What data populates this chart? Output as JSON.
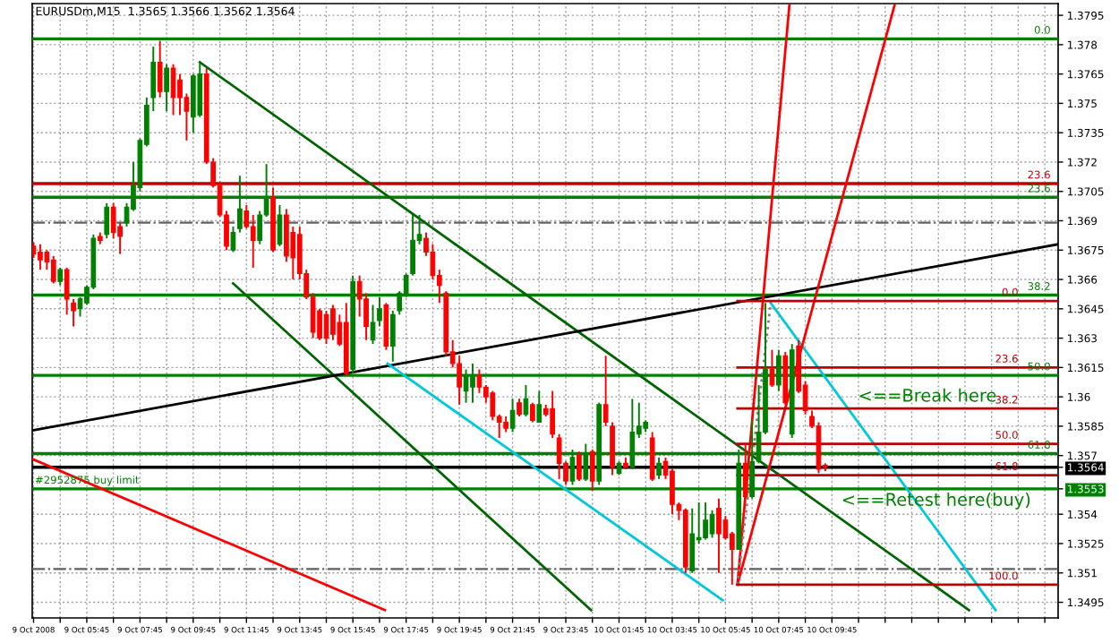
{
  "chart_data": {
    "type": "candlestick",
    "title": "EURUSDm,M15  1.3565 1.3566 1.3562 1.3564",
    "x": [
      "2008-10-09T03:45",
      "2008-10-09T04:00",
      "2008-10-09T04:15",
      "2008-10-09T04:30",
      "2008-10-09T04:45",
      "2008-10-09T05:00",
      "2008-10-09T05:15",
      "2008-10-09T05:30",
      "2008-10-09T05:45",
      "2008-10-09T06:00",
      "2008-10-09T06:15",
      "2008-10-09T06:30",
      "2008-10-09T06:45",
      "2008-10-09T07:00",
      "2008-10-09T07:15",
      "2008-10-09T07:30",
      "2008-10-09T07:45",
      "2008-10-09T08:00",
      "2008-10-09T08:15",
      "2008-10-09T08:30",
      "2008-10-09T08:45",
      "2008-10-09T09:00",
      "2008-10-09T09:15",
      "2008-10-09T09:30",
      "2008-10-09T09:45",
      "2008-10-09T10:00",
      "2008-10-09T10:15",
      "2008-10-09T10:30",
      "2008-10-09T10:45",
      "2008-10-09T11:00",
      "2008-10-09T11:15",
      "2008-10-09T11:30",
      "2008-10-09T11:45",
      "2008-10-09T12:00",
      "2008-10-09T12:15",
      "2008-10-09T12:30",
      "2008-10-09T12:45",
      "2008-10-09T13:00",
      "2008-10-09T13:15",
      "2008-10-09T13:30",
      "2008-10-09T13:45",
      "2008-10-09T14:00",
      "2008-10-09T14:15",
      "2008-10-09T14:30",
      "2008-10-09T14:45",
      "2008-10-09T15:00",
      "2008-10-09T15:15",
      "2008-10-09T15:30",
      "2008-10-09T15:45",
      "2008-10-09T16:00",
      "2008-10-09T16:15",
      "2008-10-09T16:30",
      "2008-10-09T16:45",
      "2008-10-09T17:00",
      "2008-10-09T17:15",
      "2008-10-09T17:30",
      "2008-10-09T17:45",
      "2008-10-09T18:00",
      "2008-10-09T18:15",
      "2008-10-09T18:30",
      "2008-10-09T18:45",
      "2008-10-09T19:00",
      "2008-10-09T19:15",
      "2008-10-09T19:30",
      "2008-10-09T19:45",
      "2008-10-09T20:00",
      "2008-10-09T20:15",
      "2008-10-09T20:30",
      "2008-10-09T20:45",
      "2008-10-09T21:00",
      "2008-10-09T21:15",
      "2008-10-09T21:30",
      "2008-10-09T21:45",
      "2008-10-09T22:00",
      "2008-10-09T22:15",
      "2008-10-09T22:30",
      "2008-10-09T22:45",
      "2008-10-09T23:00",
      "2008-10-09T23:15",
      "2008-10-09T23:30",
      "2008-10-09T23:45",
      "2008-10-10T00:00",
      "2008-10-10T00:15",
      "2008-10-10T00:30",
      "2008-10-10T00:45",
      "2008-10-10T01:00",
      "2008-10-10T01:15",
      "2008-10-10T01:30",
      "2008-10-10T01:45",
      "2008-10-10T02:00",
      "2008-10-10T02:15",
      "2008-10-10T02:30",
      "2008-10-10T02:45",
      "2008-10-10T03:00",
      "2008-10-10T03:15",
      "2008-10-10T03:30",
      "2008-10-10T03:45",
      "2008-10-10T04:00",
      "2008-10-10T04:15",
      "2008-10-10T04:30",
      "2008-10-10T04:45",
      "2008-10-10T05:00",
      "2008-10-10T05:15",
      "2008-10-10T05:30",
      "2008-10-10T05:45",
      "2008-10-10T06:00",
      "2008-10-10T06:15",
      "2008-10-10T06:30",
      "2008-10-10T06:45",
      "2008-10-10T07:00",
      "2008-10-10T07:15",
      "2008-10-10T07:30",
      "2008-10-10T07:45",
      "2008-10-10T08:00",
      "2008-10-10T08:15",
      "2008-10-10T08:30",
      "2008-10-10T08:45",
      "2008-10-10T09:00",
      "2008-10-10T09:15",
      "2008-10-10T09:30"
    ],
    "ohlc": [
      [
        1.3677,
        1.3679,
        1.3671,
        1.3673
      ],
      [
        1.3674,
        1.3678,
        1.3665,
        1.367
      ],
      [
        1.3674,
        1.3675,
        1.3665,
        1.3669
      ],
      [
        1.367,
        1.3672,
        1.3658,
        1.3659
      ],
      [
        1.3659,
        1.3666,
        1.3657,
        1.3665
      ],
      [
        1.3665,
        1.3666,
        1.3642,
        1.365
      ],
      [
        1.3648,
        1.365,
        1.3636,
        1.3644
      ],
      [
        1.3645,
        1.3651,
        1.3641,
        1.365
      ],
      [
        1.3648,
        1.3657,
        1.3647,
        1.3656
      ],
      [
        1.3656,
        1.3683,
        1.3655,
        1.3681
      ],
      [
        1.3682,
        1.3684,
        1.3678,
        1.368
      ],
      [
        1.3683,
        1.3699,
        1.3681,
        1.3697
      ],
      [
        1.3697,
        1.3699,
        1.3681,
        1.3684
      ],
      [
        1.3687,
        1.3689,
        1.3673,
        1.3682
      ],
      [
        1.3689,
        1.3699,
        1.3687,
        1.3697
      ],
      [
        1.3696,
        1.372,
        1.3695,
        1.3708
      ],
      [
        1.3707,
        1.3732,
        1.3705,
        1.3731
      ],
      [
        1.3729,
        1.3753,
        1.3728,
        1.3749
      ],
      [
        1.3753,
        1.3779,
        1.3746,
        1.3771
      ],
      [
        1.3771,
        1.3782,
        1.3753,
        1.3756
      ],
      [
        1.3756,
        1.377,
        1.3746,
        1.3768
      ],
      [
        1.3768,
        1.377,
        1.3744,
        1.3753
      ],
      [
        1.3762,
        1.3765,
        1.3744,
        1.3753
      ],
      [
        1.3753,
        1.3755,
        1.3731,
        1.3746
      ],
      [
        1.3743,
        1.3765,
        1.3735,
        1.3764
      ],
      [
        1.3744,
        1.3771,
        1.3743,
        1.3765
      ],
      [
        1.3765,
        1.3768,
        1.3719,
        1.372
      ],
      [
        1.372,
        1.3722,
        1.3707,
        1.3708
      ],
      [
        1.3708,
        1.371,
        1.3692,
        1.3693
      ],
      [
        1.3693,
        1.3695,
        1.3675,
        1.3677
      ],
      [
        1.3675,
        1.3687,
        1.3674,
        1.3684
      ],
      [
        1.3686,
        1.3713,
        1.3684,
        1.3696
      ],
      [
        1.3695,
        1.3698,
        1.3686,
        1.3687
      ],
      [
        1.3687,
        1.3693,
        1.3666,
        1.368
      ],
      [
        1.368,
        1.3695,
        1.3678,
        1.3693
      ],
      [
        1.3693,
        1.3719,
        1.3692,
        1.3702
      ],
      [
        1.3702,
        1.3707,
        1.3674,
        1.3675
      ],
      [
        1.3678,
        1.3698,
        1.3677,
        1.3693
      ],
      [
        1.3693,
        1.3696,
        1.3669,
        1.3672
      ],
      [
        1.3684,
        1.3687,
        1.366,
        1.3671
      ],
      [
        1.3683,
        1.3687,
        1.366,
        1.3663
      ],
      [
        1.3663,
        1.3665,
        1.365,
        1.3651
      ],
      [
        1.3651,
        1.3653,
        1.363,
        1.3633
      ],
      [
        1.3644,
        1.3645,
        1.3629,
        1.363
      ],
      [
        1.3642,
        1.3644,
        1.3627,
        1.363
      ],
      [
        1.3645,
        1.3647,
        1.3629,
        1.3632
      ],
      [
        1.3638,
        1.3642,
        1.3626,
        1.3627
      ],
      [
        1.3638,
        1.3648,
        1.3611,
        1.3612
      ],
      [
        1.3614,
        1.3662,
        1.3612,
        1.3659
      ],
      [
        1.3659,
        1.3662,
        1.3641,
        1.365
      ],
      [
        1.365,
        1.3653,
        1.3629,
        1.3636
      ],
      [
        1.3629,
        1.3647,
        1.3627,
        1.3638
      ],
      [
        1.3639,
        1.3651,
        1.3636,
        1.3645
      ],
      [
        1.3647,
        1.3648,
        1.3624,
        1.3626
      ],
      [
        1.3626,
        1.3644,
        1.3618,
        1.3642
      ],
      [
        1.3644,
        1.3654,
        1.3642,
        1.3653
      ],
      [
        1.3653,
        1.3663,
        1.3651,
        1.3662
      ],
      [
        1.3663,
        1.3693,
        1.3662,
        1.368
      ],
      [
        1.368,
        1.3693,
        1.3678,
        1.3683
      ],
      [
        1.3681,
        1.3684,
        1.3672,
        1.3674
      ],
      [
        1.3674,
        1.3678,
        1.366,
        1.3662
      ],
      [
        1.3662,
        1.3665,
        1.3648,
        1.3657
      ],
      [
        1.3653,
        1.3654,
        1.3621,
        1.3623
      ],
      [
        1.3623,
        1.3629,
        1.3615,
        1.3617
      ],
      [
        1.3617,
        1.3621,
        1.3596,
        1.3605
      ],
      [
        1.3603,
        1.3614,
        1.3597,
        1.3611
      ],
      [
        1.3605,
        1.3617,
        1.3597,
        1.3611
      ],
      [
        1.3611,
        1.3614,
        1.3602,
        1.3605
      ],
      [
        1.3605,
        1.3606,
        1.3597,
        1.36
      ],
      [
        1.3602,
        1.3603,
        1.3588,
        1.359
      ],
      [
        1.359,
        1.3591,
        1.3579,
        1.3587
      ],
      [
        1.3587,
        1.359,
        1.3582,
        1.3584
      ],
      [
        1.3584,
        1.3599,
        1.3582,
        1.3593
      ],
      [
        1.3597,
        1.3599,
        1.359,
        1.3591
      ],
      [
        1.3591,
        1.3606,
        1.359,
        1.3599
      ],
      [
        1.3596,
        1.3597,
        1.3587,
        1.3588
      ],
      [
        1.3587,
        1.3603,
        1.3587,
        1.3596
      ],
      [
        1.3594,
        1.3596,
        1.359,
        1.3591
      ],
      [
        1.3594,
        1.3603,
        1.3579,
        1.3581
      ],
      [
        1.3579,
        1.3581,
        1.3558,
        1.3566
      ],
      [
        1.3566,
        1.3567,
        1.3555,
        1.3557
      ],
      [
        1.3557,
        1.3573,
        1.3555,
        1.3569
      ],
      [
        1.357,
        1.3572,
        1.3557,
        1.3558
      ],
      [
        1.3558,
        1.3576,
        1.3557,
        1.357
      ],
      [
        1.3572,
        1.3573,
        1.3552,
        1.3557
      ],
      [
        1.3557,
        1.3597,
        1.3555,
        1.3596
      ],
      [
        1.3596,
        1.3621,
        1.3585,
        1.3587
      ],
      [
        1.3585,
        1.3587,
        1.356,
        1.3564
      ],
      [
        1.3561,
        1.3567,
        1.356,
        1.3566
      ],
      [
        1.3566,
        1.3569,
        1.3563,
        1.3564
      ],
      [
        1.3564,
        1.3599,
        1.3563,
        1.3582
      ],
      [
        1.3581,
        1.3597,
        1.3579,
        1.3585
      ],
      [
        1.3584,
        1.3588,
        1.3582,
        1.3587
      ],
      [
        1.3579,
        1.3582,
        1.3557,
        1.3558
      ],
      [
        1.356,
        1.3569,
        1.3558,
        1.3566
      ],
      [
        1.3567,
        1.3569,
        1.3558,
        1.356
      ],
      [
        1.3562,
        1.3563,
        1.354,
        1.3545
      ],
      [
        1.3545,
        1.3546,
        1.3537,
        1.3542
      ],
      [
        1.3542,
        1.3543,
        1.351,
        1.3513
      ],
      [
        1.3511,
        1.3543,
        1.351,
        1.353
      ],
      [
        1.3527,
        1.3546,
        1.3525,
        1.3528
      ],
      [
        1.3528,
        1.3546,
        1.3527,
        1.3537
      ],
      [
        1.353,
        1.3542,
        1.3528,
        1.354
      ],
      [
        1.3543,
        1.3548,
        1.351,
        1.353
      ],
      [
        1.3537,
        1.3539,
        1.3527,
        1.3528
      ],
      [
        1.353,
        1.3531,
        1.3504,
        1.3522
      ],
      [
        1.3522,
        1.3573,
        1.3522,
        1.3566
      ],
      [
        1.3566,
        1.3576,
        1.3548,
        1.3549
      ],
      [
        1.3549,
        1.3588,
        1.3548,
        1.3567
      ],
      [
        1.3567,
        1.3606,
        1.3566,
        1.3582
      ],
      [
        1.3582,
        1.3648,
        1.3581,
        1.3614
      ],
      [
        1.3614,
        1.3624,
        1.3605,
        1.3606
      ],
      [
        1.3606,
        1.3624,
        1.3603,
        1.3621
      ],
      [
        1.3621,
        1.3623,
        1.3596,
        1.3597
      ],
      [
        1.3581,
        1.3627,
        1.3579,
        1.3624
      ],
      [
        1.3626,
        1.3629,
        1.3602,
        1.3603
      ],
      [
        1.3606,
        1.3608,
        1.3591,
        1.3593
      ],
      [
        1.359,
        1.3593,
        1.3584,
        1.3585
      ],
      [
        1.3585,
        1.3587,
        1.3561,
        1.3563
      ],
      [
        1.3565,
        1.3566,
        1.3562,
        1.3564
      ]
    ],
    "colors": [
      "#ff0000",
      "#ff0000",
      "#ff0000",
      "#ff0000",
      "#008000",
      "#ff0000",
      "#ff0000",
      "#008000",
      "#008000",
      "#008000",
      "#ff0000",
      "#008000",
      "#ff0000",
      "#ff0000",
      "#008000",
      "#008000",
      "#008000",
      "#008000",
      "#008000",
      "#ff0000",
      "#008000",
      "#ff0000",
      "#ff0000",
      "#ff0000",
      "#008000",
      "#008000",
      "#ff0000",
      "#ff0000",
      "#ff0000",
      "#ff0000",
      "#008000",
      "#008000",
      "#ff0000",
      "#ff0000",
      "#008000",
      "#008000",
      "#ff0000",
      "#008000",
      "#ff0000",
      "#ff0000",
      "#ff0000",
      "#ff0000",
      "#ff0000",
      "#ff0000",
      "#ff0000",
      "#ff0000",
      "#ff0000",
      "#ff0000",
      "#008000",
      "#ff0000",
      "#ff0000",
      "#008000",
      "#008000",
      "#ff0000",
      "#008000",
      "#008000",
      "#008000",
      "#008000",
      "#008000",
      "#ff0000",
      "#ff0000",
      "#ff0000",
      "#ff0000",
      "#ff0000",
      "#ff0000",
      "#008000",
      "#008000",
      "#ff0000",
      "#ff0000",
      "#ff0000",
      "#ff0000",
      "#ff0000",
      "#008000",
      "#ff0000",
      "#008000",
      "#ff0000",
      "#008000",
      "#ff0000",
      "#ff0000",
      "#ff0000",
      "#ff0000",
      "#008000",
      "#ff0000",
      "#008000",
      "#ff0000",
      "#008000",
      "#ff0000",
      "#ff0000",
      "#008000",
      "#ff0000",
      "#008000",
      "#008000",
      "#008000",
      "#ff0000",
      "#008000",
      "#ff0000",
      "#ff0000",
      "#ff0000",
      "#ff0000",
      "#008000",
      "#008000",
      "#008000",
      "#008000",
      "#ff0000",
      "#ff0000",
      "#ff0000",
      "#008000",
      "#ff0000",
      "#008000",
      "#008000",
      "#008000",
      "#ff0000",
      "#008000",
      "#ff0000",
      "#008000",
      "#ff0000",
      "#ff0000",
      "#ff0000",
      "#ff0000",
      "#ff0000"
    ],
    "series": [
      {
        "type": "line",
        "color": "#006400",
        "x": [
          "2008-10-09T10:00",
          "2008-10-10T14:54"
        ],
        "values": [
          1.3771,
          1.3491
        ]
      },
      {
        "type": "line",
        "color": "#006400",
        "x": [
          "2008-10-09T11:15",
          "2008-10-10T00:42"
        ],
        "values": [
          1.3658,
          1.3491
        ]
      },
      {
        "type": "line",
        "color": "#000000",
        "x": [
          "2008-10-09T03:45",
          "2008-10-10T18:15"
        ],
        "values": [
          1.3583,
          1.3678
        ]
      },
      {
        "type": "line",
        "color": "#ff0000",
        "x": [
          "2008-10-09T03:45",
          "2008-10-09T16:57"
        ],
        "values": [
          1.3568,
          1.3491
        ]
      },
      {
        "type": "line",
        "color": "#00c8dc",
        "x": [
          "2008-10-09T17:03",
          "2008-10-10T05:39"
        ],
        "values": [
          1.3617,
          1.3496
        ]
      },
      {
        "type": "line",
        "color": "#00c8dc",
        "x": [
          "2008-10-10T07:27",
          "2008-10-10T15:54"
        ],
        "values": [
          1.3648,
          1.3491
        ]
      },
      {
        "type": "line",
        "color": "#ff0000",
        "x": [
          "2008-10-10T06:12",
          "2008-10-10T08:09"
        ],
        "values": [
          1.3504,
          1.38
        ]
      },
      {
        "type": "line",
        "color": "#ff0000",
        "x": [
          "2008-10-10T06:12",
          "2008-10-10T12:06"
        ],
        "values": [
          1.3504,
          1.38
        ]
      },
      {
        "type": "line",
        "color": "#808080",
        "line_style": "dotted",
        "x": [
          "2008-10-10T06:12",
          "2008-10-10T07:27"
        ],
        "values": [
          1.3504,
          1.3648
        ]
      },
      {
        "type": "line",
        "color": "#c00000",
        "name": "0.0",
        "x": [
          "2008-10-10T06:12",
          "2008-10-10T18:15"
        ],
        "values": [
          1.3649,
          1.3649
        ]
      },
      {
        "type": "line",
        "color": "#c00000",
        "name": "23.6",
        "x": [
          "2008-10-10T06:12",
          "2008-10-10T18:15"
        ],
        "values": [
          1.3615,
          1.3615
        ]
      },
      {
        "type": "line",
        "color": "#c00000",
        "name": "38.2",
        "x": [
          "2008-10-10T06:12",
          "2008-10-10T18:15"
        ],
        "values": [
          1.3594,
          1.3594
        ]
      },
      {
        "type": "line",
        "color": "#c00000",
        "name": "50.0",
        "x": [
          "2008-10-10T06:12",
          "2008-10-10T18:15"
        ],
        "values": [
          1.3576,
          1.3576
        ]
      },
      {
        "type": "line",
        "color": "#c00000",
        "name": "61.8",
        "x": [
          "2008-10-10T06:12",
          "2008-10-10T18:15"
        ],
        "values": [
          1.356,
          1.356
        ]
      },
      {
        "type": "line",
        "color": "#c00000",
        "name": "100.0",
        "x": [
          "2008-10-10T06:12",
          "2008-10-10T18:15"
        ],
        "values": [
          1.3504,
          1.3504
        ]
      }
    ],
    "ref_lines": [
      {
        "axis": "y",
        "value": 1.3783,
        "color": "#008000"
      },
      {
        "axis": "y",
        "value": 1.3709,
        "color": "#c00000"
      },
      {
        "axis": "y",
        "value": 1.3702,
        "color": "#008000"
      },
      {
        "axis": "y",
        "value": 1.3652,
        "color": "#008000"
      },
      {
        "axis": "y",
        "value": 1.3611,
        "color": "#008000"
      },
      {
        "axis": "y",
        "value": 1.3571,
        "color": "#008000"
      },
      {
        "axis": "y",
        "value": 1.3689,
        "color": "#606060",
        "line_style": "dashdot"
      },
      {
        "axis": "y",
        "value": 1.3512,
        "color": "#606060",
        "line_style": "dashdot"
      },
      {
        "axis": "y",
        "value": 1.3564,
        "color": "#000000"
      },
      {
        "axis": "y",
        "value": 1.3553,
        "color": "#008000"
      }
    ],
    "annotations": [
      {
        "text": "0.0",
        "x": "2008-10-10T18:15",
        "y": 1.3783
      },
      {
        "text": "23.6",
        "x": "2008-10-10T18:15",
        "y": 1.3709
      },
      {
        "text": "23.6",
        "x": "2008-10-10T18:15",
        "y": 1.3702
      },
      {
        "text": "38.2",
        "x": "2008-10-10T18:15",
        "y": 1.3652
      },
      {
        "text": "50.0",
        "x": "2008-10-10T18:15",
        "y": 1.3611
      },
      {
        "text": "61.8",
        "x": "2008-10-10T18:15",
        "y": 1.3571
      },
      {
        "text": "#2952875 buy limit",
        "x": "2008-10-09T03:48",
        "y": 1.3553
      },
      {
        "text": "<==Retest here(buy)",
        "x": "2008-10-10T10:06",
        "y": 1.3553
      },
      "<==Break here"
    ],
    "xlim": [
      "2008-10-09T03:42",
      "2008-10-10T18:15"
    ],
    "xticks": [
      {
        "value": "2008-10-09T03:45",
        "label": "9 Oct 2008"
      },
      {
        "value": "2008-10-09T04:45",
        "label": null
      },
      {
        "value": "2008-10-09T05:45",
        "label": "9 Oct 05:45"
      },
      {
        "value": "2008-10-09T06:45",
        "label": null
      },
      {
        "value": "2008-10-09T07:45",
        "label": "9 Oct 07:45"
      },
      {
        "value": "2008-10-09T08:45",
        "label": null
      },
      {
        "value": "2008-10-09T09:45",
        "label": "9 Oct 09:45"
      },
      {
        "value": "2008-10-09T10:45",
        "label": null
      },
      {
        "value": "2008-10-09T11:45",
        "label": "9 Oct 11:45"
      },
      {
        "value": "2008-10-09T12:45",
        "label": null
      },
      {
        "value": "2008-10-09T13:45",
        "label": "9 Oct 13:45"
      },
      {
        "value": "2008-10-09T14:45",
        "label": null
      },
      {
        "value": "2008-10-09T15:45",
        "label": "9 Oct 15:45"
      },
      {
        "value": "2008-10-09T16:45",
        "label": null
      },
      {
        "value": "2008-10-09T17:45",
        "label": "9 Oct 17:45"
      },
      {
        "value": "2008-10-09T18:45",
        "label": null
      },
      {
        "value": "2008-10-09T19:45",
        "label": "9 Oct 19:45"
      },
      {
        "value": "2008-10-09T20:45",
        "label": null
      },
      {
        "value": "2008-10-09T21:45",
        "label": "9 Oct 21:45"
      },
      {
        "value": "2008-10-09T22:45",
        "label": null
      },
      {
        "value": "2008-10-09T23:45",
        "label": "9 Oct 23:45"
      },
      {
        "value": "2008-10-10T00:45",
        "label": null
      },
      {
        "value": "2008-10-10T01:45",
        "label": "10 Oct 01:45"
      },
      {
        "value": "2008-10-10T02:45",
        "label": null
      },
      {
        "value": "2008-10-10T03:45",
        "label": "10 Oct 03:45"
      },
      {
        "value": "2008-10-10T04:45",
        "label": null
      },
      {
        "value": "2008-10-10T05:45",
        "label": "10 Oct 05:45"
      },
      {
        "value": "2008-10-10T06:45",
        "label": null
      },
      {
        "value": "2008-10-10T07:45",
        "label": "10 Oct 07:45"
      },
      {
        "value": "2008-10-10T08:45",
        "label": null
      },
      {
        "value": "2008-10-10T09:45",
        "label": "10 Oct 09:45"
      },
      {
        "value": "2008-10-10T10:45",
        "label": null
      },
      {
        "value": "2008-10-10T11:45",
        "label": null
      },
      {
        "value": "2008-10-10T12:45",
        "label": null
      },
      {
        "value": "2008-10-10T13:45",
        "label": null
      },
      {
        "value": "2008-10-10T14:45",
        "label": null
      },
      {
        "value": "2008-10-10T15:45",
        "label": null
      },
      {
        "value": "2008-10-10T16:45",
        "label": null
      },
      {
        "value": "2008-10-10T17:45",
        "label": null
      }
    ],
    "ylim": [
      1.3487,
      1.3801
    ],
    "yticks": [
      1.3495,
      1.351,
      1.3525,
      1.354,
      {
        "value": 1.3553,
        "label": "1.3553"
      },
      {
        "value": 1.3564,
        "label": "1.3564"
      },
      1.357,
      1.3585,
      1.36,
      1.3615,
      1.363,
      1.3645,
      1.366,
      1.3675,
      1.369,
      1.3705,
      1.372,
      1.3735,
      1.375,
      1.3765,
      1.378,
      1.3795
    ],
    "grid": true
  }
}
